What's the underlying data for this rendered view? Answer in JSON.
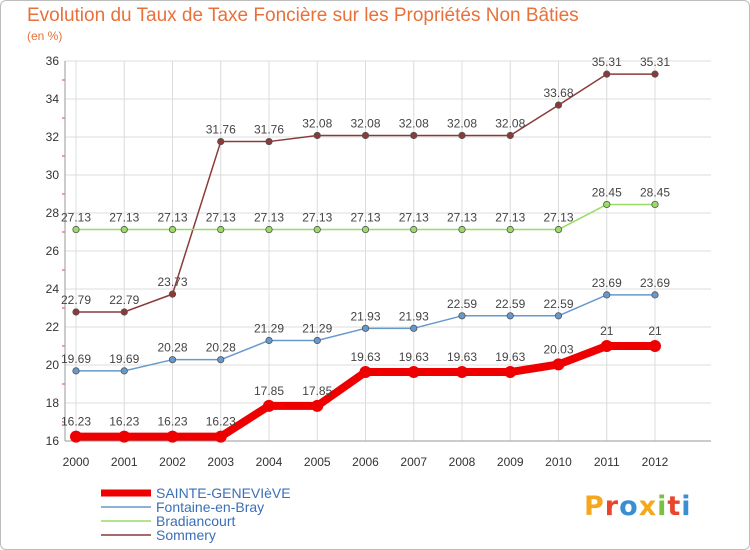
{
  "chart_data": {
    "type": "line",
    "title": "Evolution du Taux de Taxe Foncière sur les Propriétés Non Bâties",
    "ylabel": "(en %)",
    "xlabel": "",
    "ylim": [
      16,
      36
    ],
    "y_ticks": [
      "16",
      "18",
      "20",
      "22",
      "24",
      "26",
      "28",
      "30",
      "32",
      "34",
      "36"
    ],
    "categories": [
      "2000",
      "2001",
      "2002",
      "2003",
      "2004",
      "2005",
      "2006",
      "2007",
      "2008",
      "2009",
      "2010",
      "2011",
      "2012"
    ],
    "grid": true,
    "legend_position": "bottom-left",
    "series": [
      {
        "name": "SAINTE-GENEVIèVE",
        "color": "#ee0000",
        "values": [
          16.23,
          16.23,
          16.23,
          16.23,
          17.85,
          17.85,
          19.63,
          19.63,
          19.63,
          19.63,
          20.03,
          21,
          21
        ],
        "labels": [
          "16.23",
          "16.23",
          "16.23",
          "16.23",
          "17.85",
          "17.85",
          "19.63",
          "19.63",
          "19.63",
          "19.63",
          "20.03",
          "21",
          "21"
        ]
      },
      {
        "name": "Fontaine-en-Bray",
        "color": "#6699cc",
        "values": [
          19.69,
          19.69,
          20.28,
          20.28,
          21.29,
          21.29,
          21.93,
          21.93,
          22.59,
          22.59,
          22.59,
          23.69,
          23.69
        ],
        "labels": [
          "19.69",
          "19.69",
          "20.28",
          "20.28",
          "21.29",
          "21.29",
          "21.93",
          "21.93",
          "22.59",
          "22.59",
          "22.59",
          "23.69",
          "23.69"
        ]
      },
      {
        "name": "Bradiancourt",
        "color": "#99dd66",
        "values": [
          27.13,
          27.13,
          27.13,
          27.13,
          27.13,
          27.13,
          27.13,
          27.13,
          27.13,
          27.13,
          27.13,
          28.45,
          28.45
        ],
        "labels": [
          "27.13",
          "27.13",
          "27.13",
          "27.13",
          "27.13",
          "27.13",
          "27.13",
          "27.13",
          "27.13",
          "27.13",
          "27.13",
          "28.45",
          "28.45"
        ]
      },
      {
        "name": "Sommery",
        "color": "#8b3a3a",
        "values": [
          22.79,
          22.79,
          23.73,
          31.76,
          31.76,
          32.08,
          32.08,
          32.08,
          32.08,
          32.08,
          33.68,
          35.31,
          35.31
        ],
        "labels": [
          "22.79",
          "22.79",
          "23.73",
          "31.76",
          "31.76",
          "32.08",
          "32.08",
          "32.08",
          "32.08",
          "32.08",
          "33.68",
          "35.31",
          "35.31"
        ]
      }
    ]
  },
  "branding": {
    "logo_text": "Proxiti",
    "logo_colors": [
      "#f4a81d",
      "#e8452c",
      "#3a8fd4",
      "#f4a81d",
      "#7ac143",
      "#e8452c",
      "#3a8fd4"
    ]
  }
}
